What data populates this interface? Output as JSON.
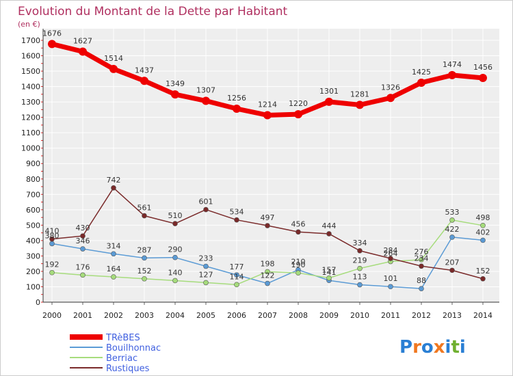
{
  "chart_data": {
    "type": "line",
    "title": "Evolution du Montant de la Dette par Habitant",
    "unit": "(en €)",
    "categories": [
      "2000",
      "2001",
      "2002",
      "2003",
      "2004",
      "2005",
      "2006",
      "2007",
      "2008",
      "2009",
      "2010",
      "2011",
      "2012",
      "2013",
      "2014"
    ],
    "ylim": [
      0,
      1700
    ],
    "yticks": [
      0,
      100,
      200,
      300,
      400,
      500,
      600,
      700,
      800,
      900,
      1000,
      1100,
      1200,
      1300,
      1400,
      1500,
      1600,
      1700
    ],
    "grid": true,
    "legend_position": "bottom-left",
    "series": [
      {
        "name": "TRèBES",
        "color": "#ee0000",
        "values": [
          1676,
          1627,
          1514,
          1437,
          1349,
          1307,
          1256,
          1214,
          1220,
          1301,
          1281,
          1326,
          1425,
          1474,
          1456
        ]
      },
      {
        "name": "Bouilhonnac",
        "color": "#5b9bd5",
        "values": [
          380,
          346,
          314,
          287,
          290,
          233,
          177,
          122,
          210,
          141,
          113,
          101,
          88,
          422,
          402
        ]
      },
      {
        "name": "Berriac",
        "color": "#a6dc7c",
        "values": [
          192,
          176,
          164,
          152,
          140,
          127,
          114,
          198,
          190,
          157,
          219,
          264,
          276,
          533,
          498
        ]
      },
      {
        "name": "Rustiques",
        "color": "#7a2a2a",
        "values": [
          410,
          430,
          742,
          561,
          510,
          601,
          534,
          497,
          456,
          444,
          334,
          284,
          234,
          207,
          152
        ]
      }
    ]
  },
  "logo": {
    "text": "Proxiti",
    "colors": [
      "#2a7fd4",
      "#f07820",
      "#2a7fd4",
      "#f07820",
      "#2a7fd4",
      "#70b030",
      "#2a7fd4"
    ]
  }
}
